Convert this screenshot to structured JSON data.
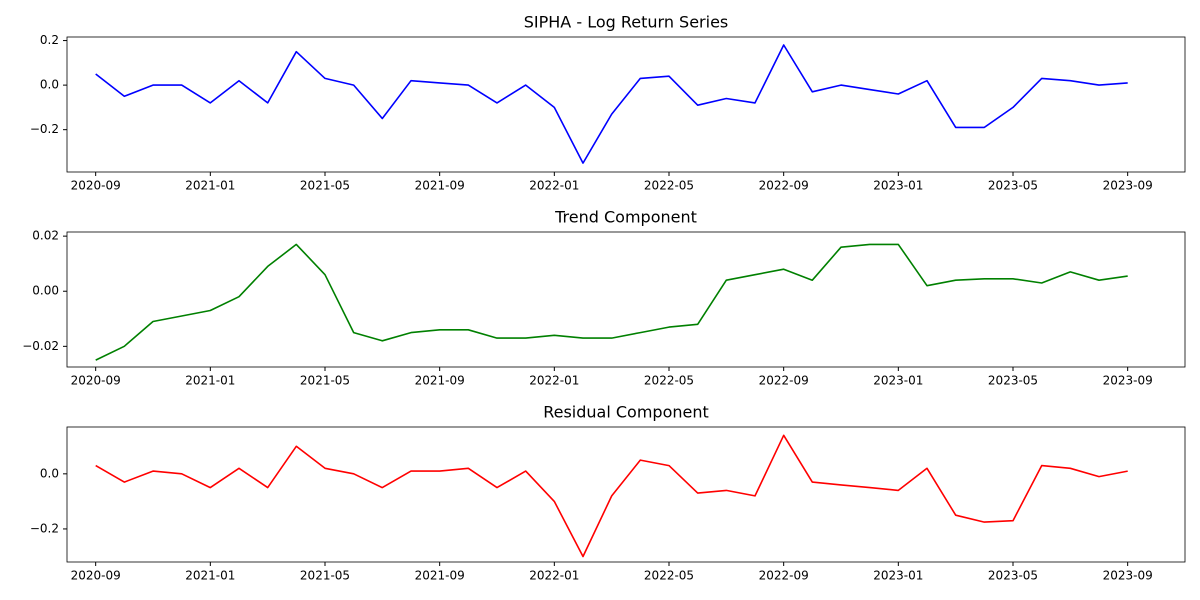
{
  "chart_data": [
    {
      "type": "line",
      "title": "SIPHA - Log Return Series",
      "color": "#0000ff",
      "x": [
        "2020-09",
        "2020-10",
        "2020-11",
        "2020-12",
        "2021-01",
        "2021-02",
        "2021-03",
        "2021-04",
        "2021-05",
        "2021-06",
        "2021-07",
        "2021-08",
        "2021-09",
        "2021-10",
        "2021-11",
        "2021-12",
        "2022-01",
        "2022-02",
        "2022-03",
        "2022-04",
        "2022-05",
        "2022-06",
        "2022-07",
        "2022-08",
        "2022-09",
        "2022-10",
        "2022-11",
        "2022-12",
        "2023-01",
        "2023-02",
        "2023-03",
        "2023-04",
        "2023-05",
        "2023-06",
        "2023-07",
        "2023-08",
        "2023-09"
      ],
      "values": [
        0.05,
        -0.05,
        0.0,
        0.0,
        -0.08,
        0.02,
        -0.08,
        0.15,
        0.03,
        0.0,
        -0.15,
        0.02,
        0.01,
        0.0,
        -0.08,
        0.0,
        -0.1,
        -0.35,
        -0.13,
        0.03,
        0.04,
        -0.09,
        -0.06,
        -0.08,
        0.18,
        -0.03,
        0.0,
        -0.02,
        -0.04,
        0.02,
        -0.19,
        -0.19,
        -0.1,
        0.03,
        0.02,
        0.0,
        0.01
      ],
      "xlim": [
        "2020-08",
        "2023-11"
      ],
      "xticks": [
        "2020-09",
        "2021-01",
        "2021-05",
        "2021-09",
        "2022-01",
        "2022-05",
        "2022-09",
        "2023-01",
        "2023-05",
        "2023-09"
      ],
      "ylim": [
        -0.39,
        0.216
      ],
      "yticks": [
        {
          "value": -0.2,
          "label": "−0.2"
        },
        {
          "value": 0,
          "label": "0.0"
        },
        0.2
      ]
    },
    {
      "type": "line",
      "title": "Trend Component",
      "color": "#008000",
      "x": [
        "2020-09",
        "2020-10",
        "2020-11",
        "2020-12",
        "2021-01",
        "2021-02",
        "2021-03",
        "2021-04",
        "2021-05",
        "2021-06",
        "2021-07",
        "2021-08",
        "2021-09",
        "2021-10",
        "2021-11",
        "2021-12",
        "2022-01",
        "2022-02",
        "2022-03",
        "2022-04",
        "2022-05",
        "2022-06",
        "2022-07",
        "2022-08",
        "2022-09",
        "2022-10",
        "2022-11",
        "2022-12",
        "2023-01",
        "2023-02",
        "2023-03",
        "2023-04",
        "2023-05",
        "2023-06",
        "2023-07",
        "2023-08",
        "2023-09"
      ],
      "values": [
        -0.025,
        -0.02,
        -0.011,
        -0.009,
        -0.007,
        -0.002,
        0.009,
        0.017,
        0.006,
        -0.015,
        -0.018,
        -0.015,
        -0.014,
        -0.014,
        -0.017,
        -0.017,
        -0.016,
        -0.017,
        -0.017,
        -0.015,
        -0.013,
        -0.012,
        0.004,
        0.006,
        0.008,
        0.004,
        0.016,
        0.017,
        0.017,
        0.002,
        0.004,
        0.0045,
        0.0045,
        0.003,
        0.007,
        0.004,
        0.0055
      ],
      "xlim": [
        "2020-08",
        "2023-11"
      ],
      "xticks": [
        "2020-09",
        "2021-01",
        "2021-05",
        "2021-09",
        "2022-01",
        "2022-05",
        "2022-09",
        "2023-01",
        "2023-05",
        "2023-09"
      ],
      "ylim": [
        -0.0275,
        0.0215
      ],
      "yticks": [
        {
          "value": -0.02,
          "label": "−0.02"
        },
        {
          "value": 0,
          "label": "0.00"
        },
        0.02
      ]
    },
    {
      "type": "line",
      "title": "Residual Component",
      "color": "#ff0000",
      "x": [
        "2020-09",
        "2020-10",
        "2020-11",
        "2020-12",
        "2021-01",
        "2021-02",
        "2021-03",
        "2021-04",
        "2021-05",
        "2021-06",
        "2021-07",
        "2021-08",
        "2021-09",
        "2021-10",
        "2021-11",
        "2021-12",
        "2022-01",
        "2022-02",
        "2022-03",
        "2022-04",
        "2022-05",
        "2022-06",
        "2022-07",
        "2022-08",
        "2022-09",
        "2022-10",
        "2022-11",
        "2022-12",
        "2023-01",
        "2023-02",
        "2023-03",
        "2023-04",
        "2023-05",
        "2023-06",
        "2023-07",
        "2023-08",
        "2023-09"
      ],
      "values": [
        0.03,
        -0.03,
        0.01,
        0.0,
        -0.05,
        0.02,
        -0.05,
        0.1,
        0.02,
        0.0,
        -0.05,
        0.01,
        0.01,
        0.02,
        -0.05,
        0.01,
        -0.1,
        -0.3,
        -0.08,
        0.05,
        0.03,
        -0.07,
        -0.06,
        -0.08,
        0.14,
        -0.03,
        -0.04,
        -0.05,
        -0.06,
        0.02,
        -0.15,
        -0.175,
        -0.17,
        0.03,
        0.02,
        -0.01,
        0.01
      ],
      "xlim": [
        "2020-08",
        "2023-11"
      ],
      "xticks": [
        "2020-09",
        "2021-01",
        "2021-05",
        "2021-09",
        "2022-01",
        "2022-05",
        "2022-09",
        "2023-01",
        "2023-05",
        "2023-09"
      ],
      "ylim": [
        -0.32,
        0.17
      ],
      "yticks": [
        {
          "value": -0.2,
          "label": "−0.2"
        },
        {
          "value": 0,
          "label": "0.0"
        }
      ]
    }
  ]
}
